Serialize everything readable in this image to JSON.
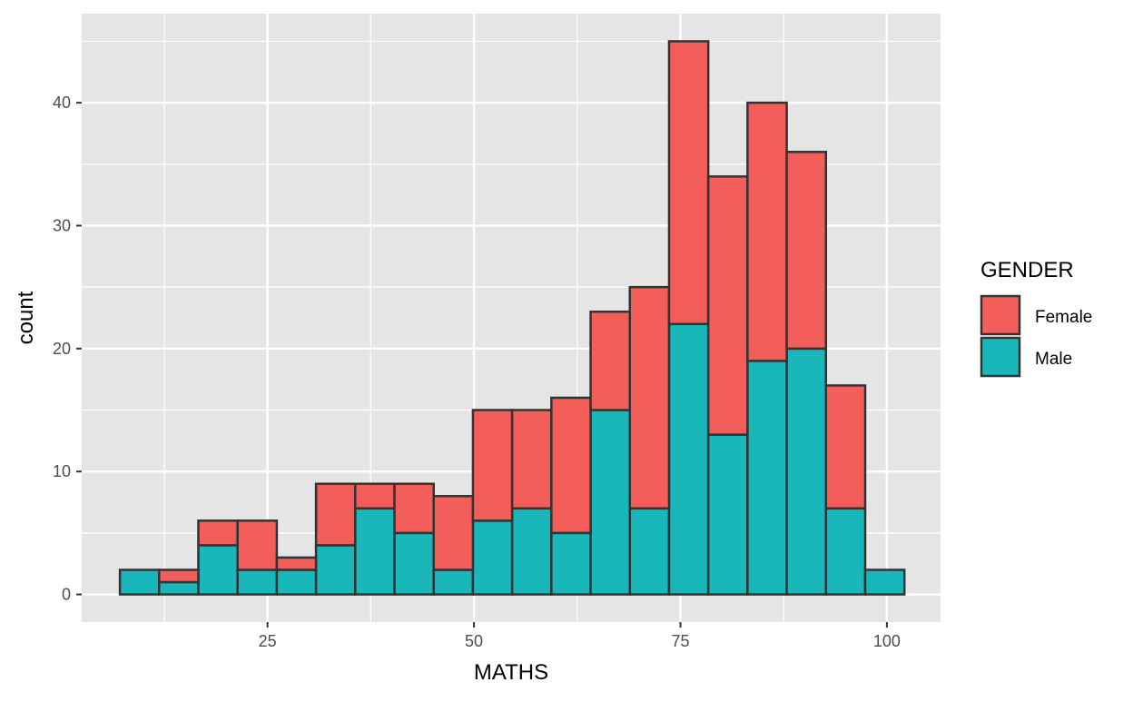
{
  "chart_data": {
    "type": "bar",
    "stacked": true,
    "histogram": true,
    "title": "",
    "xlabel": "MATHS",
    "ylabel": "count",
    "bin_width": 4.75,
    "x_bin_centers": [
      9.5,
      14.25,
      19.0,
      23.75,
      28.5,
      33.25,
      38.0,
      42.75,
      47.5,
      52.25,
      57.0,
      61.75,
      66.5,
      71.25,
      76.0,
      80.75,
      85.5,
      90.25,
      95.0,
      99.75
    ],
    "series": [
      {
        "name": "Male",
        "color": "#19B7BA",
        "values": [
          2,
          1,
          4,
          2,
          2,
          4,
          7,
          5,
          2,
          6,
          7,
          5,
          15,
          7,
          22,
          13,
          19,
          20,
          7,
          2
        ]
      },
      {
        "name": "Female",
        "color": "#F35E5A",
        "values": [
          0,
          1,
          2,
          4,
          1,
          5,
          2,
          4,
          6,
          9,
          8,
          11,
          8,
          18,
          23,
          21,
          21,
          16,
          10,
          0
        ]
      }
    ],
    "xlim": [
      2.5,
      106.5
    ],
    "ylim": [
      -2.25,
      47.25
    ],
    "x_ticks": [
      25,
      50,
      75,
      100
    ],
    "y_ticks": [
      0,
      10,
      20,
      30,
      40
    ],
    "grid": true,
    "legend": {
      "title": "GENDER",
      "position": "right",
      "entries": [
        {
          "label": "Female",
          "color": "#F35E5A"
        },
        {
          "label": "Male",
          "color": "#19B7BA"
        }
      ]
    },
    "colors": {
      "panel": "#E5E5E5",
      "grid": "#FFFFFF",
      "bar_outline": "#333333"
    }
  }
}
